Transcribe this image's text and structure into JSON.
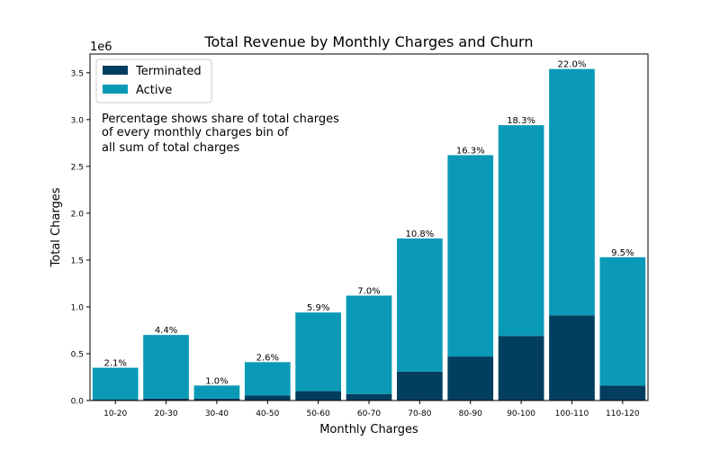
{
  "chart_data": {
    "type": "bar",
    "stacked": true,
    "title": "Total Revenue by Monthly Charges and Churn",
    "xlabel": "Monthly Charges",
    "ylabel": "Total Charges",
    "y_offset_label": "1e6",
    "ylim": [
      0,
      3700000
    ],
    "yticks": [
      0,
      500000,
      1000000,
      1500000,
      2000000,
      2500000,
      3000000,
      3500000
    ],
    "ytick_labels": [
      "0.0",
      "0.5",
      "1.0",
      "1.5",
      "2.0",
      "2.5",
      "3.0",
      "3.5"
    ],
    "grid": false,
    "legend_position": "top-left",
    "categories": [
      "10-20",
      "20-30",
      "30-40",
      "40-50",
      "50-60",
      "60-70",
      "70-80",
      "80-90",
      "90-100",
      "100-110",
      "110-120"
    ],
    "series": [
      {
        "name": "Terminated",
        "color": "#023e5f",
        "values": [
          10000,
          20000,
          20000,
          55000,
          100000,
          70000,
          310000,
          470000,
          690000,
          910000,
          160000
        ]
      },
      {
        "name": "Active",
        "color": "#0a9ab7",
        "values": [
          340000,
          680000,
          140000,
          355000,
          840000,
          1050000,
          1420000,
          2150000,
          2250000,
          2630000,
          1370000
        ]
      }
    ],
    "percent_labels": [
      "2.1%",
      "4.4%",
      "1.0%",
      "2.6%",
      "5.9%",
      "7.0%",
      "10.8%",
      "16.3%",
      "18.3%",
      "22.0%",
      "9.5%"
    ],
    "annotation": [
      "Percentage shows share of total charges",
      "of every monthly charges bin of",
      "all sum of total charges"
    ]
  }
}
